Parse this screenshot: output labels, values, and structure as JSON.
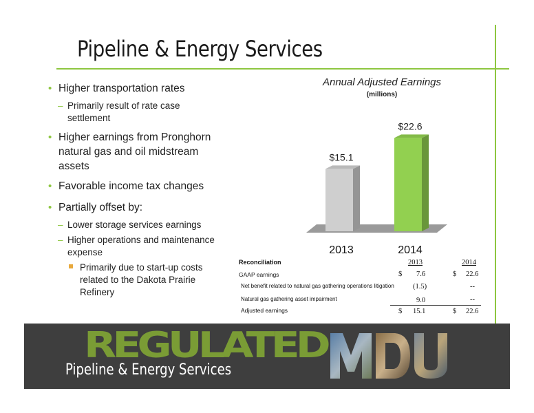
{
  "slide": {
    "title": "Pipeline & Energy Services"
  },
  "bullets": {
    "b1": "Higher transportation rates",
    "b1_sub1_line1": "Primarily result of rate case",
    "b1_sub1_line2": "settlement",
    "b2_line1": "Higher earnings from Pronghorn",
    "b2_line2": "natural gas and oil midstream",
    "b2_line3": "assets",
    "b3": "Favorable income tax changes",
    "b4": "Partially offset by:",
    "b4_sub1": "Lower storage services earnings",
    "b4_sub2_line1": "Higher operations and maintenance",
    "b4_sub2_line2": "expense",
    "b4_sub2_sub1_line1": "Primarily due to start-up costs",
    "b4_sub2_sub1_line2": "related to the Dakota Prairie",
    "b4_sub2_sub1_line3": "Refinery"
  },
  "chart_data": {
    "type": "bar",
    "title": "Annual Adjusted Earnings",
    "subtitle": "(millions)",
    "categories": [
      "2013",
      "2014"
    ],
    "values": [
      15.1,
      22.6
    ],
    "value_labels": [
      "$15.1",
      "$22.6"
    ],
    "colors": [
      "#cfcfcf",
      "#92d050"
    ],
    "ylim": [
      0,
      25
    ]
  },
  "reconciliation": {
    "heading": "Reconciliation",
    "col_2013": "2013",
    "col_2014": "2014",
    "rows": [
      {
        "label": "GAAP earnings",
        "cur13": "$",
        "v2013": "7.6",
        "cur14": "$",
        "v2014": "22.6"
      },
      {
        "label": "Net benefit related to natural gas gathering operations litigation",
        "v2013": "(1.5)",
        "v2014": "--"
      },
      {
        "label": "Natural gas gathering asset impairment",
        "v2013": "9.0",
        "v2014": "--"
      },
      {
        "label": "Adjusted earnings",
        "cur13": "$",
        "v2013": "15.1",
        "cur14": "$",
        "v2014": "22.6"
      }
    ]
  },
  "footer": {
    "banner": "REGULATED",
    "segment": "Pipeline & Energy Services",
    "logo": "MDU"
  },
  "colors": {
    "accent_green": "#8dc63f",
    "bullet_sub_square": "#e8a93c",
    "footer_bg": "#3e3e3e",
    "bar_2013": "#cfcfcf",
    "bar_2014": "#92d050"
  }
}
